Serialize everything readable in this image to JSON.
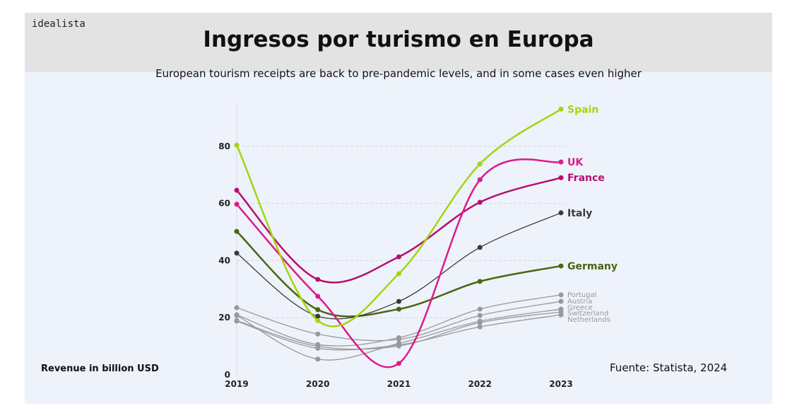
{
  "header": {
    "logo": "idealista",
    "title": "Ingresos por turismo en Europa"
  },
  "subtitle": "European tourism receipts are back to pre-pandemic levels, and in some cases even higher",
  "source": "Fuente: Statista, 2024",
  "chart_data": {
    "type": "line",
    "title": "Ingresos por turismo en Europa",
    "ylabel": "Revenue in billion USD",
    "x": [
      "2019",
      "2020",
      "2021",
      "2022",
      "2023"
    ],
    "yticks": [
      0,
      20,
      40,
      60,
      80
    ],
    "ylim": [
      0,
      95
    ],
    "grid": true,
    "legend": "end-of-line labels",
    "series": [
      {
        "name": "Spain",
        "color": "#a6d40f",
        "values": [
          80.4,
          19,
          35.4,
          73.8,
          93
        ]
      },
      {
        "name": "UK",
        "color": "#dc1a8a",
        "values": [
          59.7,
          27.5,
          4,
          68.3,
          74.5
        ]
      },
      {
        "name": "France",
        "color": "#b5106e",
        "values": [
          64.6,
          33.4,
          41.3,
          60.4,
          69
        ]
      },
      {
        "name": "Italy",
        "color": "#3a3a3a",
        "values": [
          42.6,
          20.5,
          25.7,
          44.6,
          56.7
        ]
      },
      {
        "name": "Germany",
        "color": "#4d6410",
        "values": [
          50.2,
          22.8,
          23,
          32.7,
          38.1
        ]
      },
      {
        "name": "Portugal",
        "color": "#999999",
        "values": [
          21,
          10.6,
          13,
          23,
          28
        ]
      },
      {
        "name": "Austria",
        "color": "#999999",
        "values": [
          23.5,
          14.3,
          12.4,
          20.8,
          25.7
        ]
      },
      {
        "name": "Greece",
        "color": "#999999",
        "values": [
          20.8,
          5.5,
          11,
          18.8,
          23
        ]
      },
      {
        "name": "Switzerland",
        "color": "#999999",
        "values": [
          19,
          10,
          10.1,
          18.3,
          22
        ]
      },
      {
        "name": "Netherlands",
        "color": "#999999",
        "values": [
          18.8,
          9.3,
          10.5,
          16.8,
          21
        ]
      }
    ]
  }
}
